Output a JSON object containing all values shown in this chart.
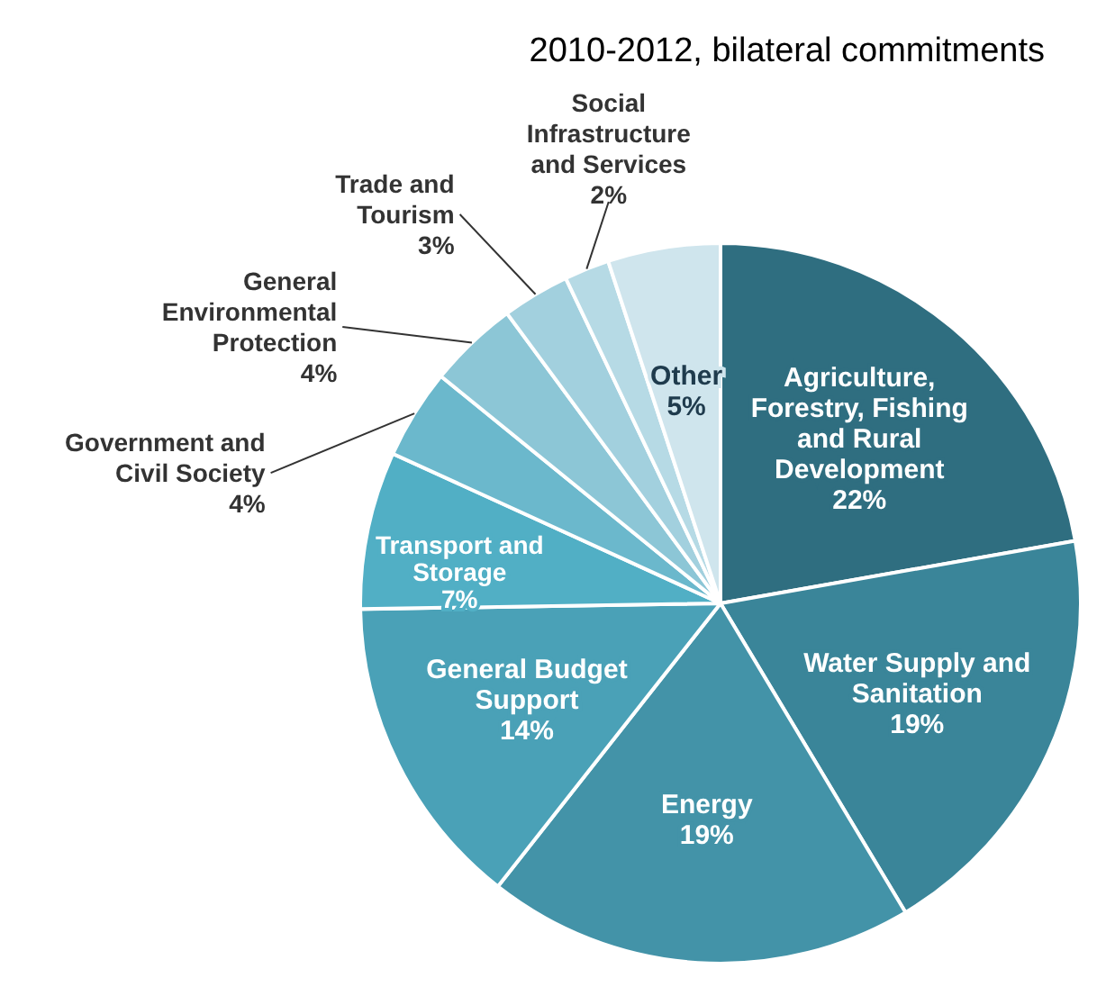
{
  "chart_data": {
    "type": "pie",
    "title": "2010-2012, bilateral commitments",
    "categories": [
      "Agriculture, Forestry, Fishing and Rural Development",
      "Water Supply and Sanitation",
      "Energy",
      "General Budget Support",
      "Transport and Storage",
      "Government and Civil Society",
      "General Environmental Protection",
      "Trade and Tourism",
      "Social Infrastructure and Services",
      "Other"
    ],
    "values": [
      22,
      19,
      19,
      14,
      7,
      4,
      4,
      3,
      2,
      5
    ],
    "colors": [
      "#2f6e80",
      "#3a8599",
      "#4393a8",
      "#4aa1b7",
      "#51afc5",
      "#6bb8cc",
      "#8cc6d6",
      "#a2d0de",
      "#b6dae5",
      "#cfe5ed"
    ],
    "value_labels": [
      "22%",
      "19%",
      "19%",
      "14%",
      "7%",
      "4%",
      "4%",
      "3%",
      "2%",
      "5%"
    ]
  }
}
